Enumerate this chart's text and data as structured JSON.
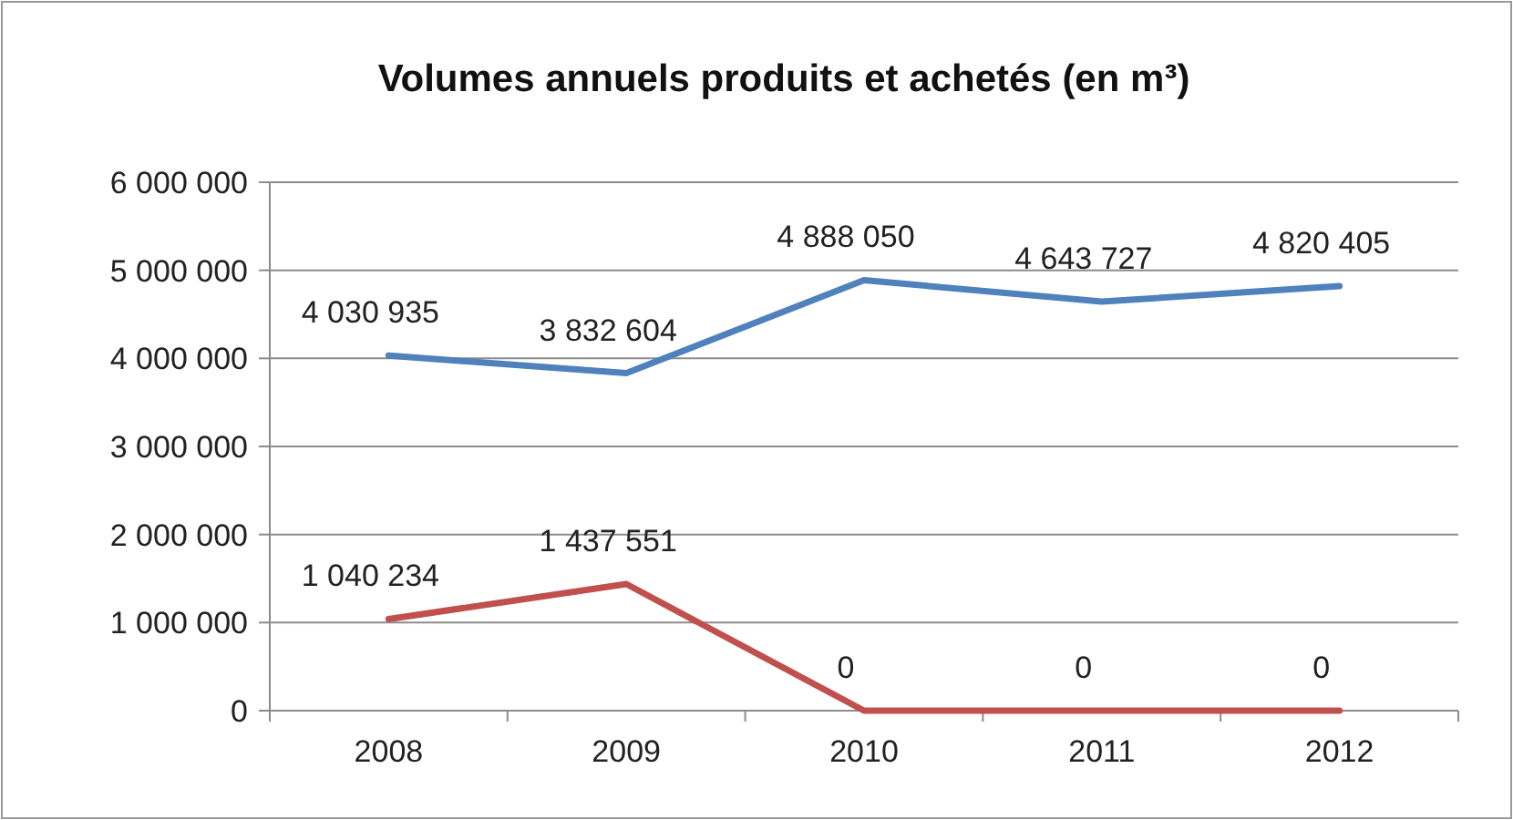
{
  "chart_data": {
    "type": "line",
    "title": "Volumes annuels produits et achetés (en m³)",
    "categories": [
      "2008",
      "2009",
      "2010",
      "2011",
      "2012"
    ],
    "series": [
      {
        "color": "#4f81bd",
        "values": [
          4030935,
          3832604,
          4888050,
          4643727,
          4820405
        ],
        "value_labels": [
          "4 030 935",
          "3 832 604",
          "4 888 050",
          "4 643 727",
          "4 820 405"
        ]
      },
      {
        "color": "#c0504d",
        "values": [
          1040234,
          1437551,
          0,
          0,
          0
        ],
        "value_labels": [
          "1 040 234",
          "1 437 551",
          "0",
          "0",
          "0"
        ]
      }
    ],
    "ylim": [
      0,
      6000000
    ],
    "yticks": [
      {
        "value": 0,
        "label": "0"
      },
      {
        "value": 1000000,
        "label": "1 000 000"
      },
      {
        "value": 2000000,
        "label": "2 000 000"
      },
      {
        "value": 3000000,
        "label": "3 000 000"
      },
      {
        "value": 4000000,
        "label": "4 000 000"
      },
      {
        "value": 5000000,
        "label": "5 000 000"
      },
      {
        "value": 6000000,
        "label": "6 000 000"
      }
    ],
    "grid": true,
    "marker": "none",
    "line_style": "solid"
  }
}
